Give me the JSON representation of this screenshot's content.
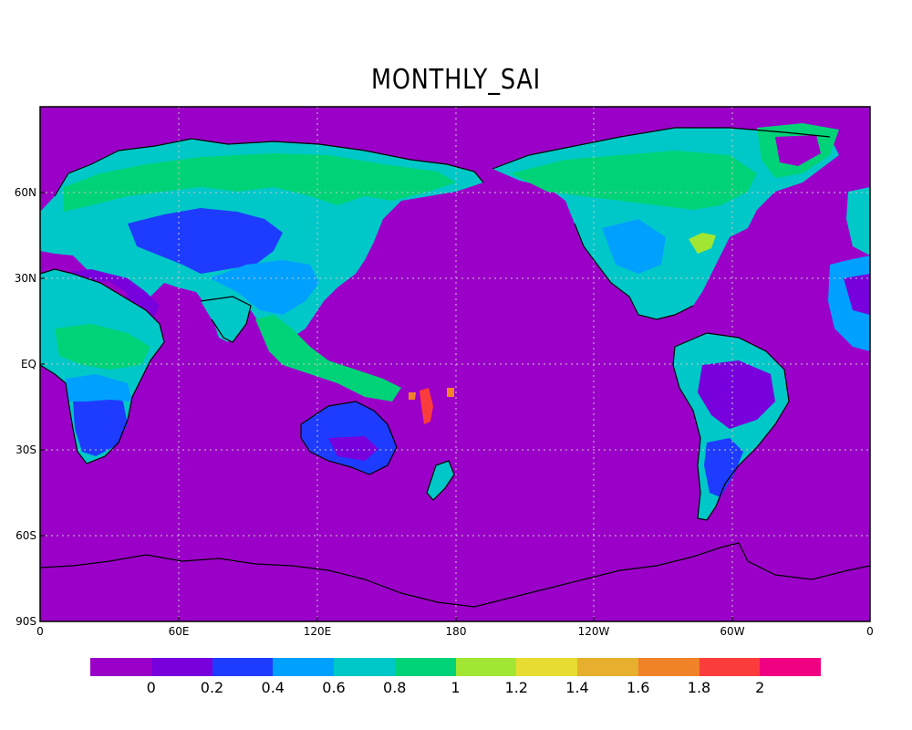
{
  "title": "MONTHLY_SAI",
  "lat_labels": [
    "60N",
    "30N",
    "EQ",
    "30S",
    "60S",
    "90S"
  ],
  "lon_labels": [
    "0",
    "60E",
    "120E",
    "180",
    "120W",
    "60W",
    "0"
  ],
  "colorbar": {
    "colors": [
      "#9b00c8",
      "#7800dc",
      "#1e3cff",
      "#00a0ff",
      "#00c8c8",
      "#00d278",
      "#a0e632",
      "#e6dc32",
      "#e6af2d",
      "#f08228",
      "#fa3c3c",
      "#f00082"
    ],
    "labels": [
      "0",
      "0.2",
      "0.4",
      "0.6",
      "0.8",
      "1",
      "1.2",
      "1.4",
      "1.6",
      "1.8",
      "2"
    ]
  },
  "colors": {
    "ocean": "#9b00c8",
    "coast": "#000000",
    "grid": "#c8c8c8"
  }
}
